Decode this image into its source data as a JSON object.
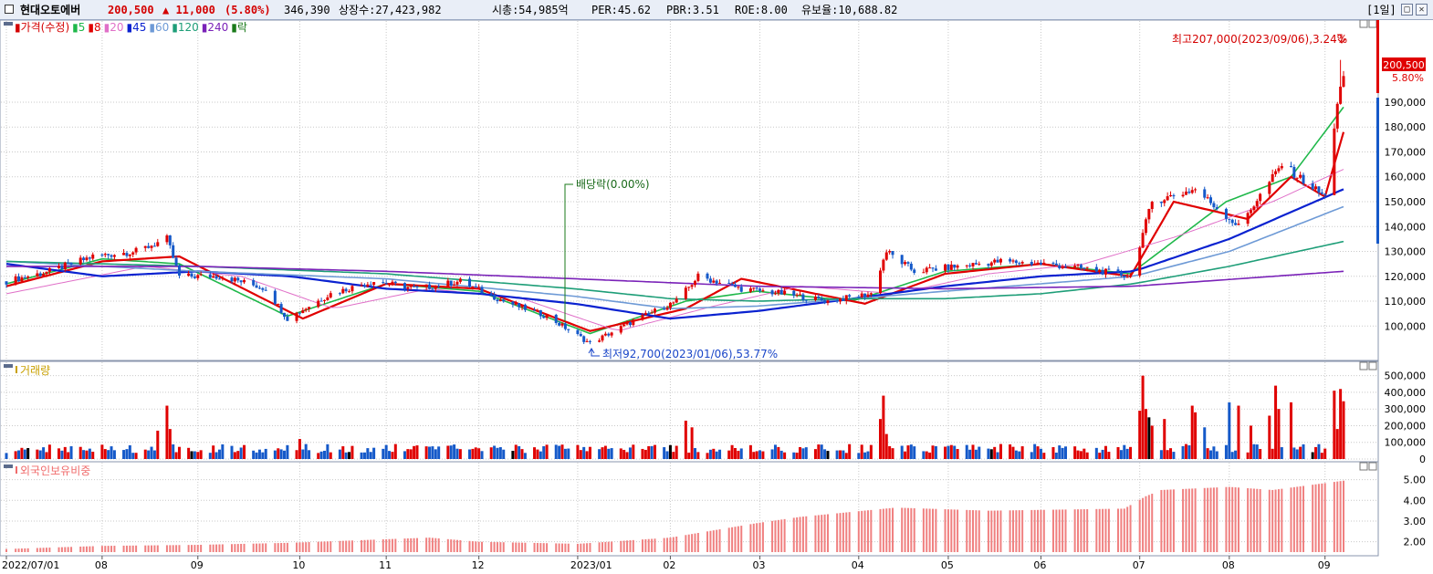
{
  "header": {
    "stock_name": "현대오토에버",
    "price": "200,500",
    "change": "▲ 11,000",
    "change_pct": "(5.80%)",
    "volume": "346,390",
    "listed_shares": "상장수:27,423,982",
    "market_cap": "시총:54,985억",
    "per": "PER:45.62",
    "pbr": "PBR:3.51",
    "roe": "ROE:8.00",
    "float_ratio": "유보율:10,688.82",
    "period": "[1일]",
    "maximize_glyph": "□",
    "close_glyph": "✕"
  },
  "panels": {
    "price": {
      "legend": [
        {
          "label": "가격(수정)",
          "color": "#d40000"
        },
        {
          "label": "5",
          "color": "#1fb84a"
        },
        {
          "label": "8",
          "color": "#e00000"
        },
        {
          "label": "20",
          "color": "#e070c8"
        },
        {
          "label": "45",
          "color": "#0a22d0"
        },
        {
          "label": "60",
          "color": "#6e9ad6"
        },
        {
          "label": "120",
          "color": "#1e9e78"
        },
        {
          "label": "240",
          "color": "#7a22b8"
        },
        {
          "label": "락",
          "color": "#1a7a1a"
        }
      ],
      "high_annotation": "최고207,000(2023/09/06),3.24%",
      "low_annotation": "최저92,700(2023/01/06),53.77%",
      "dividend_annotation": "배당락(0.00%)",
      "current_price_label": "200,500",
      "current_pct_label": "5.80%"
    },
    "volume": {
      "legend": [
        {
          "label": "거래량",
          "color": "#c8a000"
        }
      ]
    },
    "foreign": {
      "legend": [
        {
          "label": "외국인보유비중",
          "color": "#f06b6b"
        }
      ]
    }
  },
  "colors": {
    "up": "#e00000",
    "down": "#1559c9",
    "grid": "#c9c9c9",
    "foreign_bar": "#f08080"
  },
  "chart_data": [
    {
      "type": "candlestick",
      "title": "가격(수정)",
      "x_range": [
        "2022-07-01",
        "2023-09-07"
      ],
      "ylim": [
        88000,
        212000
      ],
      "y_ticks": [
        "100,000",
        "110,000",
        "120,000",
        "130,000",
        "140,000",
        "150,000",
        "160,000",
        "170,000",
        "180,000",
        "190,000"
      ],
      "x_ticks": [
        "2022/07/01",
        "08",
        "09",
        "10",
        "11",
        "12",
        "2023/01",
        "02",
        "03",
        "04",
        "05",
        "06",
        "07",
        "08",
        "09"
      ],
      "price_path": [
        [
          "2022-07-01",
          118000
        ],
        [
          "2022-07-15",
          122000
        ],
        [
          "2022-07-29",
          128000
        ],
        [
          "2022-08-12",
          130000
        ],
        [
          "2022-08-22",
          135000
        ],
        [
          "2022-08-26",
          120000
        ],
        [
          "2022-09-09",
          120000
        ],
        [
          "2022-09-23",
          115000
        ],
        [
          "2022-09-30",
          103000
        ],
        [
          "2022-10-14",
          113000
        ],
        [
          "2022-10-28",
          118000
        ],
        [
          "2022-11-11",
          115000
        ],
        [
          "2022-11-25",
          118000
        ],
        [
          "2022-12-09",
          110000
        ],
        [
          "2022-12-23",
          104000
        ],
        [
          "2023-01-06",
          93000
        ],
        [
          "2023-01-20",
          102000
        ],
        [
          "2023-02-03",
          110000
        ],
        [
          "2023-02-10",
          120000
        ],
        [
          "2023-02-24",
          115000
        ],
        [
          "2023-03-10",
          113000
        ],
        [
          "2023-03-24",
          110000
        ],
        [
          "2023-04-07",
          113000
        ],
        [
          "2023-04-12",
          130000
        ],
        [
          "2023-04-21",
          122000
        ],
        [
          "2023-05-05",
          124000
        ],
        [
          "2023-05-19",
          126000
        ],
        [
          "2023-06-02",
          125000
        ],
        [
          "2023-06-16",
          123000
        ],
        [
          "2023-06-30",
          120000
        ],
        [
          "2023-07-07",
          150000
        ],
        [
          "2023-07-21",
          155000
        ],
        [
          "2023-08-04",
          140000
        ],
        [
          "2023-08-18",
          165000
        ],
        [
          "2023-09-01",
          152000
        ],
        [
          "2023-09-05",
          190000
        ],
        [
          "2023-09-07",
          200500
        ]
      ],
      "moving_averages": [
        {
          "name": "5",
          "color": "#1fb84a",
          "values": [
            [
              "2022-07-01",
              117000
            ],
            [
              "2022-08-01",
              127000
            ],
            [
              "2022-08-26",
              125000
            ],
            [
              "2022-09-30",
              104000
            ],
            [
              "2022-11-01",
              117000
            ],
            [
              "2022-12-01",
              114000
            ],
            [
              "2023-01-06",
              97000
            ],
            [
              "2023-02-06",
              110000
            ],
            [
              "2023-03-01",
              114000
            ],
            [
              "2023-04-01",
              110000
            ],
            [
              "2023-05-01",
              122000
            ],
            [
              "2023-06-01",
              125000
            ],
            [
              "2023-06-30",
              121000
            ],
            [
              "2023-07-31",
              150000
            ],
            [
              "2023-08-21",
              160000
            ],
            [
              "2023-09-07",
              188000
            ]
          ]
        },
        {
          "name": "8",
          "color": "#e00000",
          "values": [
            [
              "2022-07-01",
              116000
            ],
            [
              "2022-08-01",
              126000
            ],
            [
              "2022-08-26",
              128000
            ],
            [
              "2022-10-05",
              103000
            ],
            [
              "2022-11-01",
              117000
            ],
            [
              "2022-12-01",
              115000
            ],
            [
              "2023-01-06",
              98000
            ],
            [
              "2023-02-06",
              107000
            ],
            [
              "2023-02-24",
              119000
            ],
            [
              "2023-03-20",
              113000
            ],
            [
              "2023-04-05",
              109000
            ],
            [
              "2023-05-01",
              121000
            ],
            [
              "2023-06-01",
              125000
            ],
            [
              "2023-06-30",
              120000
            ],
            [
              "2023-07-14",
              150000
            ],
            [
              "2023-08-07",
              143000
            ],
            [
              "2023-08-21",
              160000
            ],
            [
              "2023-09-01",
              152000
            ],
            [
              "2023-09-07",
              178000
            ]
          ]
        },
        {
          "name": "20",
          "color": "#e070c8",
          "values": [
            [
              "2022-07-01",
              113000
            ],
            [
              "2022-08-15",
              124000
            ],
            [
              "2022-09-15",
              120000
            ],
            [
              "2022-10-15",
              107000
            ],
            [
              "2022-11-15",
              115000
            ],
            [
              "2022-12-15",
              111000
            ],
            [
              "2023-01-15",
              98000
            ],
            [
              "2023-02-15",
              108000
            ],
            [
              "2023-03-15",
              116000
            ],
            [
              "2023-04-15",
              113000
            ],
            [
              "2023-05-15",
              121000
            ],
            [
              "2023-06-15",
              125000
            ],
            [
              "2023-07-15",
              136000
            ],
            [
              "2023-08-15",
              150000
            ],
            [
              "2023-09-07",
              163000
            ]
          ]
        },
        {
          "name": "45",
          "color": "#0a22d0",
          "values": [
            [
              "2022-07-01",
              125000
            ],
            [
              "2022-08-01",
              120000
            ],
            [
              "2022-09-01",
              122000
            ],
            [
              "2022-10-01",
              120000
            ],
            [
              "2022-11-01",
              115000
            ],
            [
              "2022-12-01",
              113000
            ],
            [
              "2023-01-01",
              109000
            ],
            [
              "2023-02-01",
              103000
            ],
            [
              "2023-03-01",
              106000
            ],
            [
              "2023-04-01",
              111000
            ],
            [
              "2023-05-01",
              116000
            ],
            [
              "2023-06-01",
              120000
            ],
            [
              "2023-07-01",
              122000
            ],
            [
              "2023-08-01",
              135000
            ],
            [
              "2023-09-07",
              155000
            ]
          ]
        },
        {
          "name": "60",
          "color": "#6e9ad6",
          "values": [
            [
              "2022-07-01",
              126000
            ],
            [
              "2022-09-01",
              122000
            ],
            [
              "2022-11-01",
              119000
            ],
            [
              "2023-01-01",
              112000
            ],
            [
              "2023-02-01",
              107000
            ],
            [
              "2023-03-01",
              108000
            ],
            [
              "2023-04-01",
              111000
            ],
            [
              "2023-05-01",
              114000
            ],
            [
              "2023-06-01",
              117000
            ],
            [
              "2023-07-01",
              120000
            ],
            [
              "2023-08-01",
              130000
            ],
            [
              "2023-09-07",
              148000
            ]
          ]
        },
        {
          "name": "120",
          "color": "#1e9e78",
          "values": [
            [
              "2022-07-01",
              126000
            ],
            [
              "2022-09-01",
              124000
            ],
            [
              "2022-11-01",
              121000
            ],
            [
              "2023-01-01",
              115000
            ],
            [
              "2023-02-01",
              111000
            ],
            [
              "2023-03-01",
              110000
            ],
            [
              "2023-04-01",
              111000
            ],
            [
              "2023-05-01",
              111000
            ],
            [
              "2023-06-01",
              113000
            ],
            [
              "2023-07-01",
              117000
            ],
            [
              "2023-08-01",
              124000
            ],
            [
              "2023-09-07",
              134000
            ]
          ]
        },
        {
          "name": "240",
          "color": "#7a22b8",
          "values": [
            [
              "2022-07-01",
              124000
            ],
            [
              "2022-09-01",
              124000
            ],
            [
              "2022-11-01",
              122000
            ],
            [
              "2023-01-01",
              119000
            ],
            [
              "2023-03-01",
              116000
            ],
            [
              "2023-05-01",
              115000
            ],
            [
              "2023-07-01",
              116000
            ],
            [
              "2023-09-07",
              122000
            ]
          ]
        }
      ],
      "high": {
        "date": "2023-09-06",
        "value": 207000
      },
      "low": {
        "date": "2023-01-06",
        "value": 92700
      },
      "dividend_date": "2022-12-28"
    },
    {
      "type": "bar",
      "title": "거래량",
      "ylim": [
        0,
        520000
      ],
      "y_ticks": [
        "0",
        "100,000",
        "200,000",
        "300,000",
        "400,000",
        "500,000"
      ],
      "baseline": 60000,
      "spikes": [
        [
          "2022-08-19",
          170000
        ],
        [
          "2022-08-22",
          320000
        ],
        [
          "2022-08-23",
          180000
        ],
        [
          "2022-10-04",
          120000
        ],
        [
          "2022-12-05",
          70000
        ],
        [
          "2023-02-06",
          230000
        ],
        [
          "2023-02-08",
          190000
        ],
        [
          "2023-04-10",
          240000
        ],
        [
          "2023-04-11",
          380000
        ],
        [
          "2023-04-12",
          150000
        ],
        [
          "2023-07-03",
          290000
        ],
        [
          "2023-07-04",
          500000
        ],
        [
          "2023-07-05",
          300000
        ],
        [
          "2023-07-06",
          250000
        ],
        [
          "2023-07-07",
          200000
        ],
        [
          "2023-07-11",
          240000
        ],
        [
          "2023-07-20",
          320000
        ],
        [
          "2023-07-21",
          280000
        ],
        [
          "2023-07-24",
          190000
        ],
        [
          "2023-08-01",
          340000
        ],
        [
          "2023-08-04",
          320000
        ],
        [
          "2023-08-08",
          200000
        ],
        [
          "2023-08-14",
          260000
        ],
        [
          "2023-08-16",
          440000
        ],
        [
          "2023-08-17",
          300000
        ],
        [
          "2023-08-21",
          340000
        ],
        [
          "2023-09-04",
          410000
        ],
        [
          "2023-09-05",
          180000
        ],
        [
          "2023-09-06",
          420000
        ],
        [
          "2023-09-07",
          346390
        ]
      ]
    },
    {
      "type": "bar",
      "title": "외국인보유비중",
      "ylim": [
        1.5,
        5.6
      ],
      "y_ticks": [
        "2.00",
        "3.00",
        "4.00",
        "5.00"
      ],
      "values": [
        [
          "2022-07-01",
          1.65
        ],
        [
          "2022-08-01",
          1.8
        ],
        [
          "2022-09-01",
          1.85
        ],
        [
          "2022-10-01",
          1.95
        ],
        [
          "2022-11-15",
          2.2
        ],
        [
          "2022-12-01",
          2.0
        ],
        [
          "2023-01-02",
          1.9
        ],
        [
          "2023-02-01",
          2.2
        ],
        [
          "2023-03-01",
          2.9
        ],
        [
          "2023-03-15",
          3.2
        ],
        [
          "2023-04-15",
          3.65
        ],
        [
          "2023-05-15",
          3.5
        ],
        [
          "2023-06-28",
          3.6
        ],
        [
          "2023-07-05",
          4.2
        ],
        [
          "2023-07-10",
          4.5
        ],
        [
          "2023-08-01",
          4.65
        ],
        [
          "2023-08-15",
          4.5
        ],
        [
          "2023-09-07",
          4.95
        ]
      ]
    }
  ]
}
